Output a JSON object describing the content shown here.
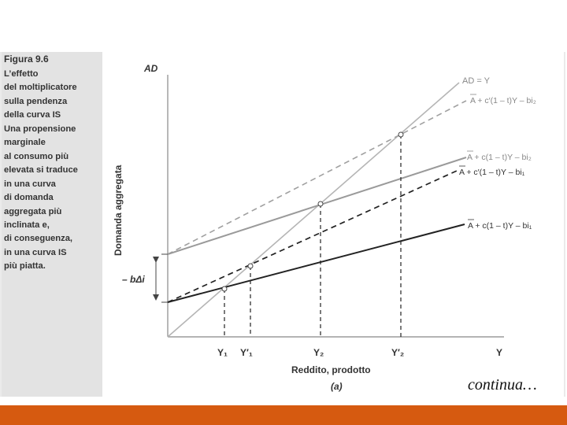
{
  "figure": {
    "title": "Figura 9.6",
    "caption_lines": [
      "L’effetto",
      "del moltiplicatore",
      "sulla pendenza",
      "della curva IS",
      "Una propensione",
      "marginale",
      "al consumo più",
      "elevata si traduce",
      "in una curva",
      "di domanda",
      "aggregata più",
      "inclinata e,",
      "di conseguenza,",
      "in una curva IS",
      "più piatta."
    ]
  },
  "diagram": {
    "y_axis_label": "AD",
    "y_axis_rotated_label": "Domanda aggregata",
    "x_axis_label": "Y",
    "x_title": "Reddito, prodotto",
    "panel_label": "(a)",
    "shift_label": "– bΔi",
    "line_labels": {
      "ad_equals_y": "AD = Y",
      "high_c_top": "A + c′(1 – t)Y – bi₂",
      "low_c_top": "A + c(1 – t)Y – bi₂",
      "high_c_bottom": "A + c′(1 – t)Y – bi₁",
      "low_c_bottom": "A + c(1 – t)Y – bi₁"
    },
    "x_ticks": {
      "y1": "Y₁",
      "y1_prime": "Y′₁",
      "y2": "Y₂",
      "y2_prime": "Y′₂"
    }
  },
  "footer": {
    "continua": "continua…"
  },
  "colors": {
    "accent_bar": "#d65a10",
    "sidebar": "#e3e3e3",
    "line_dark": "#222222",
    "line_gray": "#9a9a9a",
    "line_light": "#b5b5b5"
  }
}
